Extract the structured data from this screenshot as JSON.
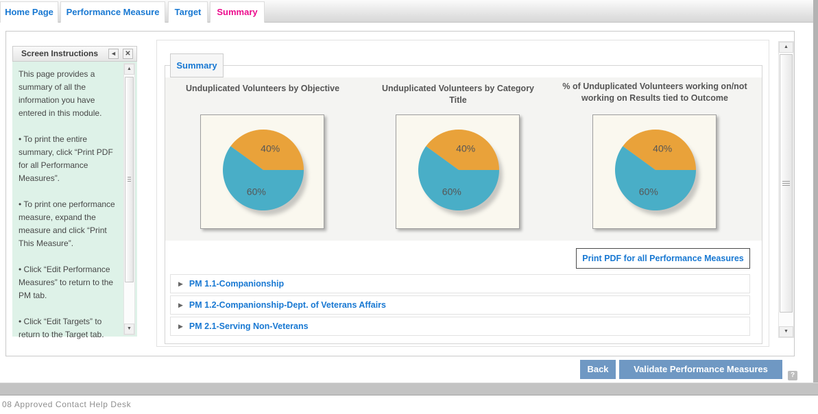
{
  "header_tabs": {
    "items": [
      {
        "label": "Home Page",
        "active": false
      },
      {
        "label": "Performance Measure",
        "active": false
      },
      {
        "label": "Target",
        "active": false
      },
      {
        "label": "Summary",
        "active": true
      }
    ]
  },
  "instructions_panel": {
    "title": "Screen Instructions",
    "collapse_icon": "◄",
    "close_icon": "✕",
    "paragraphs": [
      "This page provides a summary of all the information you have entered in this module.",
      "• To print the entire summary, click “Print PDF for all Performance Measures”.",
      "• To print one performance measure, expand the measure and click “Print This Measure”.",
      "• Click “Edit Performance Measures” to return to the PM tab.",
      "• Click “Edit Targets” to return to the Target tab."
    ]
  },
  "main": {
    "tab_label": "Summary",
    "print_all_button": "Print PDF for all Performance Measures",
    "expander_icon": "▶",
    "measures": [
      {
        "label": "PM 1.1-Companionship"
      },
      {
        "label": "PM 1.2-Companionship-Dept. of Veterans Affairs"
      },
      {
        "label": "PM 2.1-Serving Non-Veterans"
      }
    ]
  },
  "chart_data": [
    {
      "type": "pie",
      "title": "Unduplicated Volunteers by Objective",
      "values": [
        40,
        60
      ],
      "slice_labels": [
        "40%",
        "60%"
      ],
      "colors": [
        "#e9a23a",
        "#49aec7"
      ],
      "legend": "none"
    },
    {
      "type": "pie",
      "title": "Unduplicated Volunteers by Category Title",
      "values": [
        40,
        60
      ],
      "slice_labels": [
        "40%",
        "60%"
      ],
      "colors": [
        "#e9a23a",
        "#49aec7"
      ],
      "legend": "none"
    },
    {
      "type": "pie",
      "title": "% of Unduplicated Volunteers working on/not working on Results tied to Outcome",
      "values": [
        40,
        60
      ],
      "slice_labels": [
        "40%",
        "60%"
      ],
      "colors": [
        "#e9a23a",
        "#49aec7"
      ],
      "legend": "none"
    }
  ],
  "action_bar": {
    "back_button": "Back",
    "validate_button": "Validate Performance Measures",
    "help_icon": "?"
  },
  "footer": {
    "status_text": "08 Approved Contact Help Desk"
  }
}
